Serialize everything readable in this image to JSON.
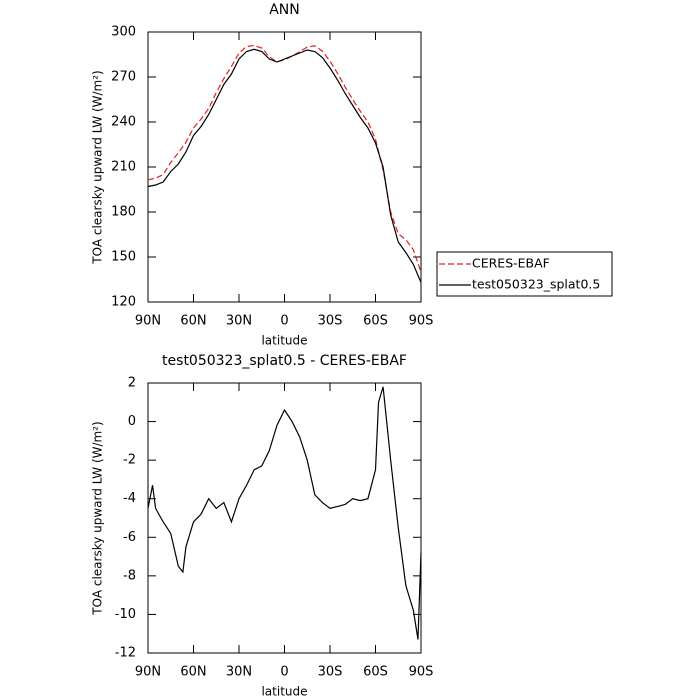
{
  "chart_data": [
    {
      "type": "line",
      "title": "ANN",
      "xlabel": "latitude",
      "ylabel": "TOA clearsky upward LW (W/m²)",
      "x": [
        90,
        85,
        80,
        75,
        70,
        65,
        60,
        55,
        50,
        45,
        40,
        35,
        30,
        25,
        20,
        15,
        10,
        5,
        0,
        -5,
        -10,
        -15,
        -20,
        -25,
        -30,
        -35,
        -40,
        -45,
        -50,
        -55,
        -60,
        -65,
        -70,
        -75,
        -80,
        -85,
        -90
      ],
      "xlim": [
        90,
        -90
      ],
      "xticks": [
        {
          "value": 90,
          "label": "90N"
        },
        {
          "value": 60,
          "label": "60N"
        },
        {
          "value": 30,
          "label": "30N"
        },
        0,
        {
          "value": -30,
          "label": "30S"
        },
        {
          "value": -60,
          "label": "60S"
        },
        {
          "value": -90,
          "label": "90S"
        }
      ],
      "ylim": [
        120,
        300
      ],
      "yticks": [
        120,
        150,
        180,
        210,
        240,
        270,
        300
      ],
      "legend": "right",
      "series": [
        {
          "name": "CERES-EBAF",
          "color": "#e02020",
          "line_style": "dashed",
          "values": [
            201.5,
            202.5,
            205,
            213,
            219.5,
            226.5,
            236,
            242,
            249,
            259.5,
            269,
            277,
            286,
            290.3,
            291,
            289.3,
            283.5,
            280.2,
            281.4,
            284,
            286.8,
            290,
            290.8,
            287.2,
            280.5,
            272.4,
            263.3,
            255,
            247.1,
            240,
            228.5,
            208.2,
            180,
            165.5,
            161.5,
            154.8,
            139.8
          ]
        },
        {
          "name": "test050323_splat0.5",
          "color": "#000000",
          "line_style": "solid",
          "values": [
            197,
            198,
            200,
            207,
            212,
            220,
            231,
            237,
            245,
            255,
            265,
            272,
            282,
            287,
            288.5,
            287,
            282,
            280,
            282,
            284,
            286,
            288,
            287,
            283,
            276,
            268,
            259,
            251,
            243,
            236,
            226,
            210,
            178,
            160,
            153,
            145,
            133
          ]
        }
      ]
    },
    {
      "type": "line",
      "title": "test050323_splat0.5 - CERES-EBAF",
      "xlabel": "latitude",
      "ylabel": "TOA clearsky upward LW (W/m²)",
      "x": [
        90,
        87,
        85,
        80,
        75,
        70,
        67,
        65,
        60,
        55,
        50,
        45,
        40,
        35,
        30,
        25,
        20,
        15,
        10,
        5,
        0,
        -5,
        -10,
        -15,
        -20,
        -25,
        -30,
        -35,
        -40,
        -45,
        -50,
        -55,
        -60,
        -62,
        -65,
        -70,
        -75,
        -80,
        -85,
        -88,
        -90
      ],
      "xlim": [
        90,
        -90
      ],
      "xticks": [
        {
          "value": 90,
          "label": "90N"
        },
        {
          "value": 60,
          "label": "60N"
        },
        {
          "value": 30,
          "label": "30N"
        },
        0,
        {
          "value": -30,
          "label": "30S"
        },
        {
          "value": -60,
          "label": "60S"
        },
        {
          "value": -90,
          "label": "90S"
        }
      ],
      "ylim": [
        -12,
        2
      ],
      "yticks": [
        -12,
        -10,
        -8,
        -6,
        -4,
        -2,
        0,
        2
      ],
      "series": [
        {
          "name": "test050323_splat0.5 - CERES-EBAF",
          "color": "#000000",
          "line_style": "solid",
          "values": [
            -4.5,
            -3.3,
            -4.5,
            -5.2,
            -5.8,
            -7.5,
            -7.8,
            -6.5,
            -5.2,
            -4.8,
            -4,
            -4.5,
            -4.2,
            -5.2,
            -4,
            -3.3,
            -2.5,
            -2.3,
            -1.5,
            -0.2,
            0.6,
            0,
            -0.8,
            -2,
            -3.8,
            -4.2,
            -4.5,
            -4.4,
            -4.3,
            -4,
            -4.1,
            -4,
            -2.5,
            1,
            1.8,
            -2,
            -5.5,
            -8.5,
            -9.8,
            -11.3,
            -6.8
          ]
        }
      ]
    }
  ]
}
